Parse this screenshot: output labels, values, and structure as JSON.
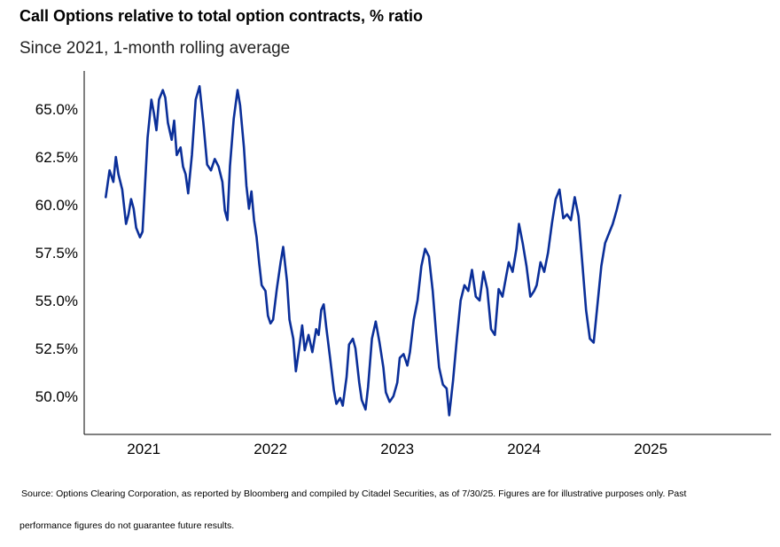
{
  "chart_data": {
    "type": "line",
    "title": "Call Options relative to total option contracts, % ratio",
    "subtitle": "Since 2021, 1-month rolling average",
    "x_tick_labels": [
      "2021",
      "2022",
      "2023",
      "2024",
      "2025"
    ],
    "x_tick_values": [
      2021,
      2022,
      2023,
      2024,
      2025
    ],
    "y_tick_labels": [
      "50.0%",
      "52.5%",
      "55.0%",
      "57.5%",
      "60.0%",
      "62.5%",
      "65.0%"
    ],
    "y_tick_values": [
      50.0,
      52.5,
      55.0,
      57.5,
      60.0,
      62.5,
      65.0
    ],
    "xlim": [
      2020.53,
      2025.95
    ],
    "ylim": [
      48.0,
      67.0
    ],
    "grid": false,
    "line_color": "#0b2f99",
    "series": [
      {
        "points": [
          [
            2020.7,
            60.4
          ],
          [
            2020.73,
            61.8
          ],
          [
            2020.76,
            61.2
          ],
          [
            2020.78,
            62.5
          ],
          [
            2020.8,
            61.6
          ],
          [
            2020.83,
            60.8
          ],
          [
            2020.86,
            59.0
          ],
          [
            2020.88,
            59.5
          ],
          [
            2020.9,
            60.3
          ],
          [
            2020.92,
            59.8
          ],
          [
            2020.94,
            58.8
          ],
          [
            2020.97,
            58.3
          ],
          [
            2020.99,
            58.6
          ],
          [
            2021.01,
            61.0
          ],
          [
            2021.03,
            63.5
          ],
          [
            2021.06,
            65.5
          ],
          [
            2021.08,
            64.8
          ],
          [
            2021.1,
            63.9
          ],
          [
            2021.12,
            65.5
          ],
          [
            2021.15,
            66.0
          ],
          [
            2021.17,
            65.6
          ],
          [
            2021.19,
            64.3
          ],
          [
            2021.22,
            63.4
          ],
          [
            2021.24,
            64.4
          ],
          [
            2021.26,
            62.6
          ],
          [
            2021.29,
            63.0
          ],
          [
            2021.31,
            62.0
          ],
          [
            2021.33,
            61.6
          ],
          [
            2021.35,
            60.6
          ],
          [
            2021.38,
            62.6
          ],
          [
            2021.41,
            65.5
          ],
          [
            2021.44,
            66.2
          ],
          [
            2021.47,
            64.3
          ],
          [
            2021.5,
            62.1
          ],
          [
            2021.53,
            61.8
          ],
          [
            2021.56,
            62.4
          ],
          [
            2021.59,
            62.0
          ],
          [
            2021.62,
            61.2
          ],
          [
            2021.64,
            59.7
          ],
          [
            2021.66,
            59.2
          ],
          [
            2021.68,
            62.0
          ],
          [
            2021.71,
            64.5
          ],
          [
            2021.74,
            66.0
          ],
          [
            2021.76,
            65.2
          ],
          [
            2021.79,
            63.0
          ],
          [
            2021.81,
            61.0
          ],
          [
            2021.83,
            59.8
          ],
          [
            2021.85,
            60.7
          ],
          [
            2021.87,
            59.2
          ],
          [
            2021.89,
            58.3
          ],
          [
            2021.91,
            57.0
          ],
          [
            2021.93,
            55.8
          ],
          [
            2021.96,
            55.5
          ],
          [
            2021.98,
            54.2
          ],
          [
            2022.0,
            53.8
          ],
          [
            2022.02,
            54.0
          ],
          [
            2022.05,
            55.6
          ],
          [
            2022.08,
            57.0
          ],
          [
            2022.1,
            57.8
          ],
          [
            2022.13,
            56.0
          ],
          [
            2022.15,
            54.0
          ],
          [
            2022.18,
            53.0
          ],
          [
            2022.2,
            51.3
          ],
          [
            2022.23,
            52.7
          ],
          [
            2022.25,
            53.7
          ],
          [
            2022.27,
            52.4
          ],
          [
            2022.3,
            53.2
          ],
          [
            2022.33,
            52.3
          ],
          [
            2022.36,
            53.5
          ],
          [
            2022.38,
            53.2
          ],
          [
            2022.4,
            54.5
          ],
          [
            2022.42,
            54.8
          ],
          [
            2022.44,
            53.6
          ],
          [
            2022.47,
            52.0
          ],
          [
            2022.5,
            50.3
          ],
          [
            2022.52,
            49.6
          ],
          [
            2022.55,
            49.9
          ],
          [
            2022.57,
            49.5
          ],
          [
            2022.6,
            51.0
          ],
          [
            2022.62,
            52.7
          ],
          [
            2022.65,
            53.0
          ],
          [
            2022.67,
            52.5
          ],
          [
            2022.7,
            50.7
          ],
          [
            2022.72,
            49.8
          ],
          [
            2022.75,
            49.3
          ],
          [
            2022.77,
            50.5
          ],
          [
            2022.8,
            53.0
          ],
          [
            2022.83,
            53.9
          ],
          [
            2022.86,
            52.8
          ],
          [
            2022.89,
            51.5
          ],
          [
            2022.91,
            50.2
          ],
          [
            2022.94,
            49.7
          ],
          [
            2022.97,
            50.0
          ],
          [
            2023.0,
            50.7
          ],
          [
            2023.02,
            52.0
          ],
          [
            2023.05,
            52.2
          ],
          [
            2023.08,
            51.6
          ],
          [
            2023.1,
            52.3
          ],
          [
            2023.13,
            54.0
          ],
          [
            2023.16,
            55.0
          ],
          [
            2023.19,
            56.8
          ],
          [
            2023.22,
            57.7
          ],
          [
            2023.25,
            57.3
          ],
          [
            2023.28,
            55.5
          ],
          [
            2023.31,
            53.0
          ],
          [
            2023.33,
            51.5
          ],
          [
            2023.36,
            50.6
          ],
          [
            2023.39,
            50.4
          ],
          [
            2023.41,
            49.0
          ],
          [
            2023.44,
            50.8
          ],
          [
            2023.47,
            53.0
          ],
          [
            2023.5,
            55.0
          ],
          [
            2023.53,
            55.8
          ],
          [
            2023.56,
            55.5
          ],
          [
            2023.59,
            56.6
          ],
          [
            2023.62,
            55.2
          ],
          [
            2023.65,
            55.0
          ],
          [
            2023.68,
            56.5
          ],
          [
            2023.71,
            55.6
          ],
          [
            2023.74,
            53.5
          ],
          [
            2023.77,
            53.2
          ],
          [
            2023.8,
            55.6
          ],
          [
            2023.83,
            55.2
          ],
          [
            2023.86,
            56.3
          ],
          [
            2023.88,
            57.0
          ],
          [
            2023.91,
            56.5
          ],
          [
            2023.94,
            57.7
          ],
          [
            2023.96,
            59.0
          ],
          [
            2023.99,
            58.0
          ],
          [
            2024.02,
            56.8
          ],
          [
            2024.05,
            55.2
          ],
          [
            2024.08,
            55.5
          ],
          [
            2024.1,
            55.8
          ],
          [
            2024.13,
            57.0
          ],
          [
            2024.16,
            56.5
          ],
          [
            2024.19,
            57.5
          ],
          [
            2024.22,
            59.0
          ],
          [
            2024.25,
            60.3
          ],
          [
            2024.28,
            60.8
          ],
          [
            2024.31,
            59.3
          ],
          [
            2024.34,
            59.5
          ],
          [
            2024.37,
            59.2
          ],
          [
            2024.4,
            60.4
          ],
          [
            2024.43,
            59.4
          ],
          [
            2024.46,
            57.0
          ],
          [
            2024.49,
            54.5
          ],
          [
            2024.52,
            53.0
          ],
          [
            2024.55,
            52.8
          ],
          [
            2024.58,
            54.8
          ],
          [
            2024.61,
            56.8
          ],
          [
            2024.64,
            58.0
          ],
          [
            2024.67,
            58.5
          ],
          [
            2024.7,
            59.0
          ],
          [
            2024.73,
            59.7
          ],
          [
            2024.76,
            60.5
          ]
        ]
      }
    ]
  },
  "source_line_1": "Source: Options Clearing Corporation, as reported by Bloomberg and compiled by Citadel Securities, as of 7/30/25. Figures are for illustrative purposes only. Past",
  "source_line_2": "performance figures do not guarantee future results."
}
